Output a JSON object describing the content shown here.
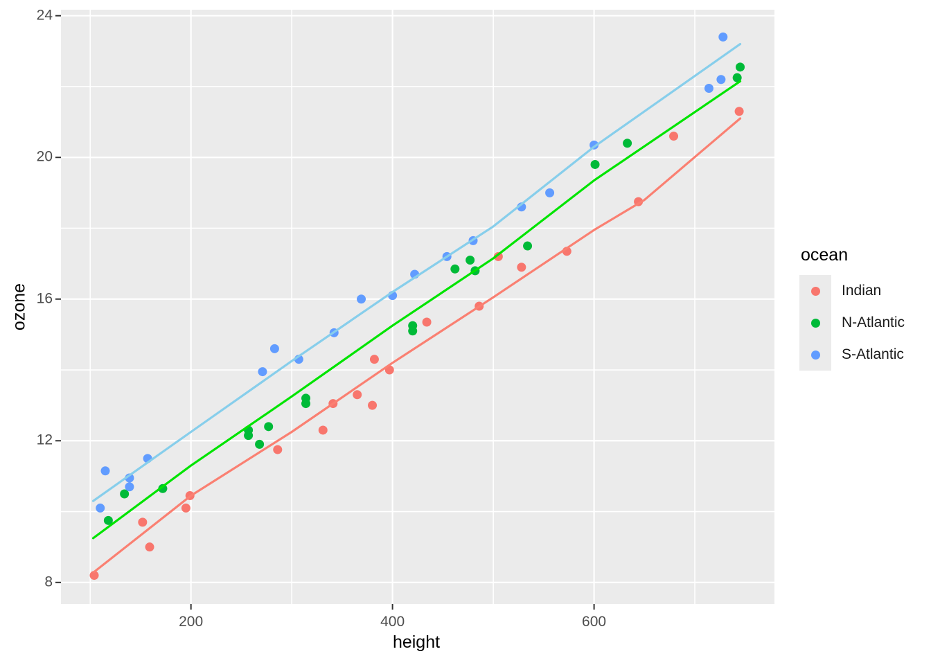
{
  "chart_data": {
    "type": "scatter",
    "title": "",
    "xlabel": "height",
    "ylabel": "ozone",
    "legend_title": "ocean",
    "legend_position": "right",
    "grid": true,
    "xlim": [
      71,
      779
    ],
    "ylim": [
      7.39,
      24.17
    ],
    "x_ticks": [
      200,
      400,
      600
    ],
    "y_ticks": [
      8,
      12,
      16,
      20,
      24
    ],
    "x_minor_ticks": [
      100,
      300,
      500,
      700
    ],
    "y_minor_ticks": [
      10,
      14,
      18,
      22
    ],
    "colors": {
      "panel_bg": "#EBEBEB",
      "gridline": "#FFFFFF",
      "tick_text": "#4D4D4D",
      "axis_title_text": "#000000",
      "tick_mark": "#333333"
    },
    "series": [
      {
        "name": "Indian",
        "point_color": "#F8766D",
        "line_color": "#FA8072",
        "points": [
          [
            104,
            8.2
          ],
          [
            152,
            9.7
          ],
          [
            159,
            9.0
          ],
          [
            195,
            10.1
          ],
          [
            199,
            10.45
          ],
          [
            286,
            11.75
          ],
          [
            331,
            12.3
          ],
          [
            341,
            13.05
          ],
          [
            365,
            13.3
          ],
          [
            380,
            13.0
          ],
          [
            382,
            14.3
          ],
          [
            397,
            14.0
          ],
          [
            434,
            15.35
          ],
          [
            486,
            15.8
          ],
          [
            505,
            17.2
          ],
          [
            528,
            16.9
          ],
          [
            573,
            17.35
          ],
          [
            644,
            18.75
          ],
          [
            679,
            20.6
          ],
          [
            744,
            21.3
          ]
        ],
        "trend": [
          [
            104,
            8.3
          ],
          [
            200,
            10.45
          ],
          [
            300,
            12.25
          ],
          [
            400,
            14.2
          ],
          [
            500,
            16.05
          ],
          [
            600,
            17.95
          ],
          [
            650,
            18.8
          ],
          [
            745,
            21.1
          ]
        ]
      },
      {
        "name": "N-Atlantic",
        "point_color": "#00BA38",
        "line_color": "#00E400",
        "points": [
          [
            118,
            9.75
          ],
          [
            134,
            10.5
          ],
          [
            172,
            10.65
          ],
          [
            257,
            12.3
          ],
          [
            257,
            12.15
          ],
          [
            268,
            11.9
          ],
          [
            277,
            12.4
          ],
          [
            314,
            13.2
          ],
          [
            314,
            13.05
          ],
          [
            420,
            15.25
          ],
          [
            420,
            15.1
          ],
          [
            462,
            16.85
          ],
          [
            477,
            17.1
          ],
          [
            482,
            16.8
          ],
          [
            534,
            17.5
          ],
          [
            601,
            19.8
          ],
          [
            633,
            20.4
          ],
          [
            742,
            22.25
          ],
          [
            745,
            22.55
          ]
        ],
        "trend": [
          [
            103,
            9.25
          ],
          [
            200,
            11.3
          ],
          [
            300,
            13.25
          ],
          [
            400,
            15.25
          ],
          [
            500,
            17.15
          ],
          [
            600,
            19.35
          ],
          [
            745,
            22.15
          ]
        ]
      },
      {
        "name": "S-Atlantic",
        "point_color": "#619CFF",
        "line_color": "#87CEEB",
        "points": [
          [
            110,
            10.1
          ],
          [
            115,
            11.15
          ],
          [
            139,
            10.95
          ],
          [
            139,
            10.7
          ],
          [
            157,
            11.5
          ],
          [
            271,
            13.95
          ],
          [
            283,
            14.6
          ],
          [
            307,
            14.3
          ],
          [
            342,
            15.05
          ],
          [
            369,
            16.0
          ],
          [
            400,
            16.1
          ],
          [
            422,
            16.7
          ],
          [
            454,
            17.2
          ],
          [
            480,
            17.65
          ],
          [
            528,
            18.6
          ],
          [
            556,
            19.0
          ],
          [
            600,
            20.35
          ],
          [
            714,
            21.95
          ],
          [
            726,
            22.2
          ],
          [
            728,
            23.4
          ]
        ],
        "trend": [
          [
            103,
            10.3
          ],
          [
            200,
            12.25
          ],
          [
            300,
            14.25
          ],
          [
            400,
            16.2
          ],
          [
            500,
            18.05
          ],
          [
            600,
            20.3
          ],
          [
            745,
            23.2
          ]
        ]
      }
    ]
  }
}
